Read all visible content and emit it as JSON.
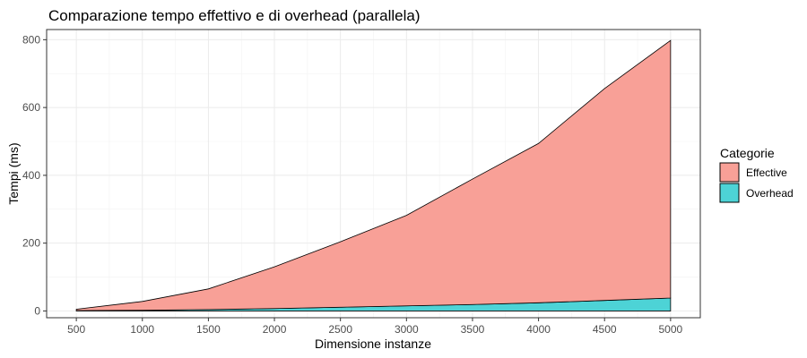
{
  "chart_data": {
    "type": "area",
    "title": "Comparazione tempo effettivo e di overhead (parallela)",
    "xlabel": "Dimensione instanze",
    "ylabel": "Tempi (ms)",
    "x": [
      500,
      1000,
      1500,
      2000,
      2500,
      3000,
      3500,
      4000,
      4500,
      5000
    ],
    "xticks": [
      500,
      1000,
      1500,
      2000,
      2500,
      3000,
      3500,
      4000,
      4500,
      5000
    ],
    "yticks": [
      0,
      200,
      400,
      600,
      800
    ],
    "xlim": [
      275,
      5225
    ],
    "ylim": [
      -20,
      830
    ],
    "stacked": true,
    "grid": true,
    "legend_position": "right",
    "legend_title": "Categorie",
    "series": [
      {
        "name": "Overhead",
        "color": "#4dd3d6",
        "values": [
          1,
          2,
          4,
          7,
          11,
          15,
          19,
          24,
          31,
          38
        ]
      },
      {
        "name": "Effective",
        "color": "#f8a097",
        "values": [
          4,
          26,
          61,
          123,
          193,
          267,
          370,
          470,
          625,
          760
        ]
      }
    ]
  }
}
